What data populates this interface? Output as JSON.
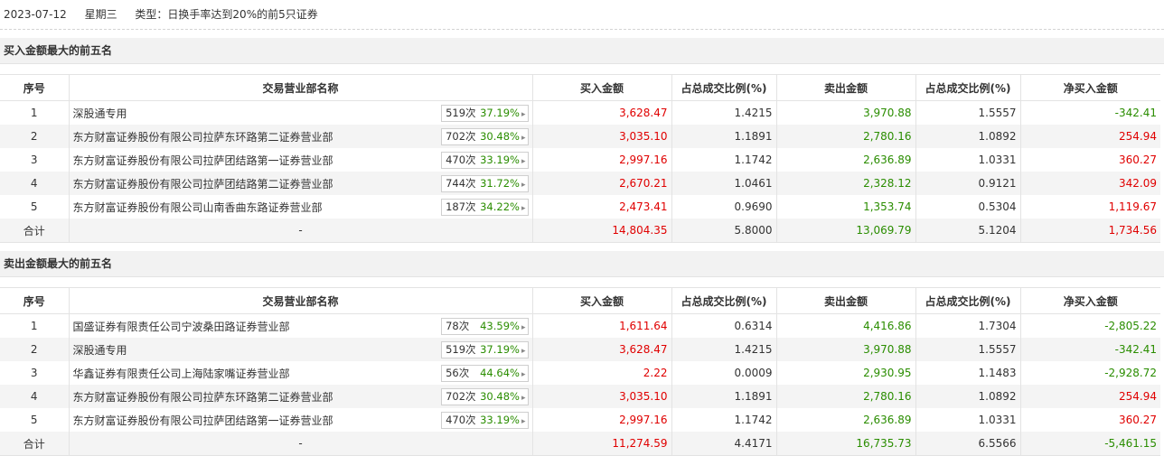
{
  "header": {
    "date": "2023-07-12",
    "weekday": "星期三",
    "type": "类型：日换手率达到20%的前5只证券"
  },
  "columns": [
    "序号",
    "交易营业部名称",
    "买入金额",
    "占总成交比例(%)",
    "卖出金额",
    "占总成交比例(%)",
    "净买入金额"
  ],
  "buy_section": {
    "title": "买入金额最大的前五名",
    "rows": [
      {
        "idx": "1",
        "name": "深股通专用",
        "count": "519次",
        "pct": "37.19%",
        "buy": "3,628.47",
        "buy_ratio": "1.4215",
        "sell": "3,970.88",
        "sell_ratio": "1.5557",
        "net": "-342.41",
        "net_sign": "neg"
      },
      {
        "idx": "2",
        "name": "东方财富证券股份有限公司拉萨东环路第二证券营业部",
        "count": "702次",
        "pct": "30.48%",
        "buy": "3,035.10",
        "buy_ratio": "1.1891",
        "sell": "2,780.16",
        "sell_ratio": "1.0892",
        "net": "254.94",
        "net_sign": "pos"
      },
      {
        "idx": "3",
        "name": "东方财富证券股份有限公司拉萨团结路第一证券营业部",
        "count": "470次",
        "pct": "33.19%",
        "buy": "2,997.16",
        "buy_ratio": "1.1742",
        "sell": "2,636.89",
        "sell_ratio": "1.0331",
        "net": "360.27",
        "net_sign": "pos"
      },
      {
        "idx": "4",
        "name": "东方财富证券股份有限公司拉萨团结路第二证券营业部",
        "count": "744次",
        "pct": "31.72%",
        "buy": "2,670.21",
        "buy_ratio": "1.0461",
        "sell": "2,328.12",
        "sell_ratio": "0.9121",
        "net": "342.09",
        "net_sign": "pos"
      },
      {
        "idx": "5",
        "name": "东方财富证券股份有限公司山南香曲东路证券营业部",
        "count": "187次",
        "pct": "34.22%",
        "buy": "2,473.41",
        "buy_ratio": "0.9690",
        "sell": "1,353.74",
        "sell_ratio": "0.5304",
        "net": "1,119.67",
        "net_sign": "pos"
      }
    ],
    "total": {
      "label": "合计",
      "name": "-",
      "buy": "14,804.35",
      "buy_ratio": "5.8000",
      "sell": "13,069.79",
      "sell_ratio": "5.1204",
      "net": "1,734.56",
      "net_sign": "pos"
    }
  },
  "sell_section": {
    "title": "卖出金额最大的前五名",
    "rows": [
      {
        "idx": "1",
        "name": "国盛证券有限责任公司宁波桑田路证券营业部",
        "count": "78次",
        "pct": "43.59%",
        "buy": "1,611.64",
        "buy_ratio": "0.6314",
        "sell": "4,416.86",
        "sell_ratio": "1.7304",
        "net": "-2,805.22",
        "net_sign": "neg"
      },
      {
        "idx": "2",
        "name": "深股通专用",
        "count": "519次",
        "pct": "37.19%",
        "buy": "3,628.47",
        "buy_ratio": "1.4215",
        "sell": "3,970.88",
        "sell_ratio": "1.5557",
        "net": "-342.41",
        "net_sign": "neg"
      },
      {
        "idx": "3",
        "name": "华鑫证券有限责任公司上海陆家嘴证券营业部",
        "count": "56次",
        "pct": "44.64%",
        "buy": "2.22",
        "buy_ratio": "0.0009",
        "sell": "2,930.95",
        "sell_ratio": "1.1483",
        "net": "-2,928.72",
        "net_sign": "neg"
      },
      {
        "idx": "4",
        "name": "东方财富证券股份有限公司拉萨东环路第二证券营业部",
        "count": "702次",
        "pct": "30.48%",
        "buy": "3,035.10",
        "buy_ratio": "1.1891",
        "sell": "2,780.16",
        "sell_ratio": "1.0892",
        "net": "254.94",
        "net_sign": "pos"
      },
      {
        "idx": "5",
        "name": "东方财富证券股份有限公司拉萨团结路第一证券营业部",
        "count": "470次",
        "pct": "33.19%",
        "buy": "2,997.16",
        "buy_ratio": "1.1742",
        "sell": "2,636.89",
        "sell_ratio": "1.0331",
        "net": "360.27",
        "net_sign": "pos"
      }
    ],
    "total": {
      "label": "合计",
      "name": "-",
      "buy": "11,274.59",
      "buy_ratio": "4.4171",
      "sell": "16,735.73",
      "sell_ratio": "6.5566",
      "net": "-5,461.15",
      "net_sign": "neg"
    }
  },
  "icons": {
    "badge_arrow": "chevron-right-icon"
  },
  "colors": {
    "positive": "#e00000",
    "negative": "#2a8d00",
    "sell": "#2a8d00"
  }
}
